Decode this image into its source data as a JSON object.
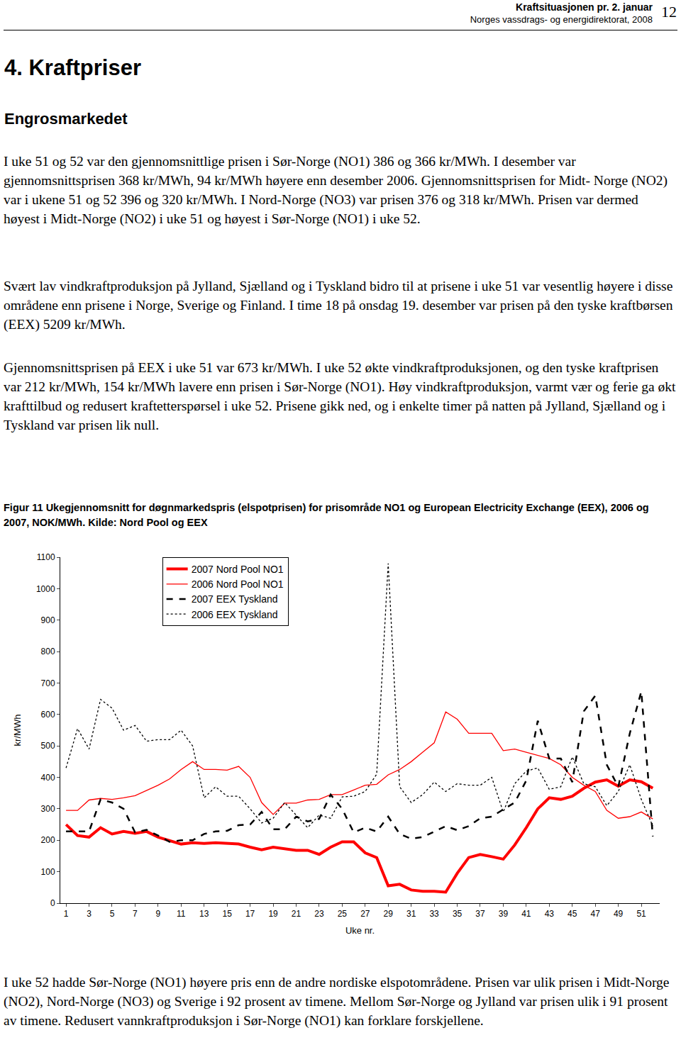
{
  "header": {
    "title": "Kraftsituasjonen pr. 2. januar",
    "organization": "Norges vassdrags- og energidirektorat, 2008",
    "page": "12"
  },
  "heading": "4. Kraftpriser",
  "subheading": "Engrosmarkedet",
  "paragraphs": [
    "I uke 51 og 52 var den gjennomsnittlige prisen i Sør-Norge (NO1) 386 og 366 kr/MWh. I desember var gjennomsnittsprisen 368 kr/MWh, 94 kr/MWh høyere enn desember 2006. Gjennomsnittsprisen for Midt- Norge (NO2) var i ukene 51 og 52 396 og 320 kr/MWh. I Nord-Norge (NO3) var prisen 376 og 318 kr/MWh. Prisen var dermed høyest i Midt-Norge (NO2) i uke 51 og høyest i Sør-Norge (NO1) i uke 52.",
    "Svært lav vindkraftproduksjon på Jylland, Sjælland og i Tyskland bidro til at prisene i uke 51 var vesentlig høyere i disse områdene enn prisene i Norge, Sverige og Finland. I time 18 på onsdag 19. desember var prisen på den tyske kraftbørsen (EEX) 5209 kr/MWh.",
    "Gjennomsnittsprisen på EEX i uke 51 var 673 kr/MWh. I uke 52 økte vindkraftproduksjonen, og den tyske kraftprisen var 212 kr/MWh, 154 kr/MWh lavere enn prisen i Sør-Norge (NO1). Høy vindkraftproduksjon, varmt vær og ferie ga økt krafttilbud og redusert kraftetterspørsel i uke 52. Prisene gikk ned, og i enkelte timer på natten på Jylland, Sjælland og i Tyskland var prisen lik null."
  ],
  "figure_caption": "Figur 11 Ukegjennomsnitt for døgnmarkedspris (elspotprisen) for prisområde NO1 og European Electricity Exchange (EEX), 2006 og 2007, NOK/MWh. Kilde: Nord Pool og EEX",
  "chart_data": {
    "type": "line",
    "x_label": "Uke nr.",
    "y_label": "kr/MWh",
    "x": [
      1,
      2,
      3,
      4,
      5,
      6,
      7,
      8,
      9,
      10,
      11,
      12,
      13,
      14,
      15,
      16,
      17,
      18,
      19,
      20,
      21,
      22,
      23,
      24,
      25,
      26,
      27,
      28,
      29,
      30,
      31,
      32,
      33,
      34,
      35,
      36,
      37,
      38,
      39,
      40,
      41,
      42,
      43,
      44,
      45,
      46,
      47,
      48,
      49,
      50,
      51,
      52
    ],
    "xlim": [
      0.5,
      52.6
    ],
    "xticks": [
      1,
      3,
      5,
      7,
      9,
      11,
      13,
      15,
      17,
      19,
      21,
      23,
      25,
      27,
      29,
      31,
      33,
      35,
      37,
      39,
      41,
      43,
      45,
      47,
      49,
      51
    ],
    "ylim": [
      0,
      1100
    ],
    "yticks": [
      0,
      100,
      200,
      300,
      400,
      500,
      600,
      700,
      800,
      900,
      1000,
      1100
    ],
    "grid": false,
    "legend": "top-left",
    "series": [
      {
        "name": "2007 Nord Pool NO1",
        "color": "#ff0000",
        "line_style": "solid",
        "values": [
          250,
          215,
          210,
          240,
          220,
          228,
          222,
          228,
          210,
          200,
          188,
          192,
          190,
          192,
          190,
          188,
          178,
          170,
          178,
          172,
          168,
          168,
          155,
          178,
          195,
          195,
          160,
          145,
          55,
          60,
          42,
          38,
          38,
          35,
          95,
          145,
          155,
          148,
          140,
          185,
          240,
          300,
          335,
          330,
          340,
          365,
          385,
          392,
          372,
          392,
          386,
          366
        ]
      },
      {
        "name": "2006 Nord Pool NO1",
        "color": "#ff0000",
        "line_style": "solid",
        "values": [
          295,
          295,
          328,
          333,
          330,
          335,
          342,
          358,
          375,
          395,
          425,
          450,
          425,
          425,
          423,
          435,
          400,
          320,
          282,
          318,
          318,
          328,
          330,
          345,
          345,
          360,
          375,
          378,
          408,
          425,
          450,
          480,
          510,
          608,
          585,
          540,
          540,
          540,
          485,
          490,
          480,
          470,
          460,
          440,
          400,
          375,
          355,
          295,
          270,
          275,
          290,
          268
        ]
      },
      {
        "name": "2007 EEX Tyskland",
        "color": "#000000",
        "line_style": "dash",
        "values": [
          228,
          228,
          228,
          330,
          320,
          300,
          225,
          233,
          215,
          195,
          200,
          200,
          220,
          228,
          230,
          248,
          250,
          290,
          235,
          235,
          275,
          260,
          268,
          345,
          300,
          225,
          240,
          228,
          275,
          220,
          205,
          210,
          228,
          245,
          232,
          245,
          270,
          275,
          298,
          320,
          390,
          580,
          460,
          460,
          385,
          610,
          660,
          440,
          370,
          540,
          673,
          212
        ]
      },
      {
        "name": "2006 EEX Tyskland",
        "color": "#000000",
        "line_style": "dot",
        "values": [
          430,
          555,
          490,
          648,
          620,
          550,
          565,
          515,
          520,
          520,
          550,
          500,
          335,
          370,
          340,
          340,
          300,
          255,
          270,
          320,
          280,
          240,
          280,
          270,
          338,
          340,
          355,
          410,
          1080,
          370,
          320,
          345,
          385,
          355,
          380,
          375,
          375,
          400,
          290,
          380,
          420,
          430,
          362,
          370,
          465,
          380,
          370,
          310,
          355,
          440,
          330,
          245
        ]
      }
    ]
  },
  "paragraphs_after": [
    "I uke 52 hadde Sør-Norge (NO1) høyere pris enn de andre nordiske elspotområdene. Prisen var ulik prisen i Midt-Norge (NO2), Nord-Norge (NO3) og Sverige i 92 prosent av timene. Mellom Sør-Norge og Jylland var prisen ulik i 91 prosent av timene. Redusert vannkraftproduksjon i Sør-Norge (NO1) kan forklare forskjellene."
  ]
}
